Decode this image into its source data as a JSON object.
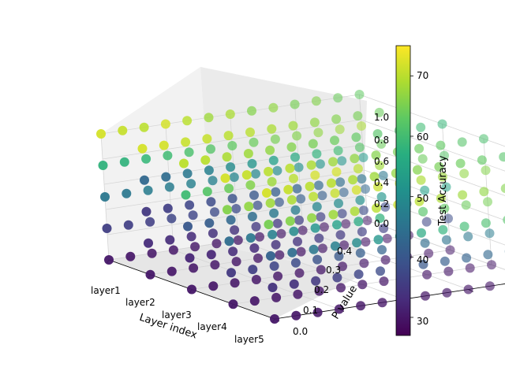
{
  "chart_data": {
    "type": "scatter",
    "title": "",
    "xlabel": "Layer index",
    "ylabel": "P value",
    "zlabel": "",
    "x_categories": [
      "layer1",
      "layer2",
      "layer3",
      "layer4",
      "layer5"
    ],
    "y_ticks": [
      "0.0",
      "0.1",
      "0.2",
      "0.3",
      "0.4"
    ],
    "z_ticks": [
      "0.0",
      "0.2",
      "0.4",
      "0.6",
      "0.8",
      "1.0"
    ],
    "xlim": [
      1,
      5
    ],
    "ylim": [
      0.0,
      0.4
    ],
    "zlim": [
      0.0,
      1.0
    ],
    "grid": true,
    "colorbar": {
      "label": "Test Accuracy",
      "ticks": [
        "30",
        "40",
        "50",
        "60",
        "70"
      ],
      "range": [
        27,
        75
      ],
      "colormap": "viridis"
    },
    "z_levels": [
      0.0,
      0.25,
      0.5,
      0.75,
      1.0
    ],
    "p_values": [
      0.0,
      0.0333,
      0.0667,
      0.1,
      0.1333,
      0.1667,
      0.2,
      0.2333,
      0.2667,
      0.3,
      0.3333,
      0.3667,
      0.4
    ],
    "accuracy_by_layer_and_z": {
      "layer1": [
        [
          30,
          30,
          30,
          30,
          30,
          30,
          30,
          30,
          30,
          30,
          30,
          30,
          30
        ],
        [
          36,
          36,
          36,
          37,
          37,
          38,
          38,
          39,
          40,
          41,
          41,
          42,
          43
        ],
        [
          46,
          46,
          47,
          47,
          48,
          48,
          49,
          49,
          50,
          51,
          52,
          52,
          53
        ],
        [
          58,
          58,
          59,
          60,
          61,
          62,
          63,
          64,
          65,
          66,
          67,
          68,
          69
        ],
        [
          72,
          71,
          70,
          72,
          70,
          68,
          69,
          66,
          67,
          65,
          66,
          64,
          63
        ]
      ],
      "layer2": [
        [
          30,
          30,
          30,
          30,
          30,
          30,
          30,
          30,
          30,
          30,
          30,
          30,
          30
        ],
        [
          33,
          33,
          33,
          34,
          34,
          35,
          35,
          36,
          36,
          37,
          38,
          38,
          39
        ],
        [
          35,
          36,
          37,
          38,
          39,
          40,
          41,
          42,
          43,
          44,
          45,
          46,
          47
        ],
        [
          43,
          44,
          46,
          48,
          50,
          52,
          54,
          56,
          58,
          60,
          62,
          64,
          66
        ],
        [
          72,
          72,
          71,
          71,
          70,
          70,
          69,
          68,
          67,
          66,
          65,
          64,
          63
        ]
      ],
      "layer3": [
        [
          30,
          30,
          30,
          30,
          30,
          30,
          30,
          30,
          30,
          30,
          30,
          30,
          30
        ],
        [
          32,
          32,
          33,
          33,
          34,
          34,
          35,
          35,
          36,
          36,
          37,
          37,
          38
        ],
        [
          40,
          41,
          43,
          44,
          46,
          47,
          49,
          50,
          51,
          52,
          53,
          54,
          55
        ],
        [
          60,
          62,
          64,
          66,
          68,
          70,
          72,
          72,
          70,
          68,
          66,
          64,
          62
        ],
        [
          70,
          70,
          69,
          68,
          67,
          66,
          65,
          64,
          63,
          62,
          61,
          60,
          59
        ]
      ],
      "layer4": [
        [
          30,
          30,
          30,
          30,
          30,
          30,
          30,
          30,
          30,
          30,
          30,
          30,
          30
        ],
        [
          35,
          36,
          37,
          38,
          39,
          40,
          41,
          42,
          43,
          44,
          45,
          46,
          47
        ],
        [
          44,
          46,
          48,
          50,
          52,
          54,
          56,
          58,
          60,
          62,
          63,
          64,
          65
        ],
        [
          66,
          67,
          68,
          69,
          70,
          71,
          72,
          71,
          70,
          69,
          68,
          67,
          66
        ],
        [
          72,
          71,
          70,
          70,
          69,
          68,
          67,
          66,
          65,
          64,
          63,
          62,
          61
        ]
      ],
      "layer5": [
        [
          30,
          30,
          30,
          30,
          30,
          30,
          30,
          30,
          30,
          30,
          30,
          30,
          30
        ],
        [
          34,
          34,
          35,
          36,
          37,
          38,
          39,
          40,
          41,
          42,
          43,
          44,
          45
        ],
        [
          42,
          44,
          46,
          48,
          50,
          52,
          54,
          56,
          58,
          60,
          61,
          62,
          63
        ],
        [
          65,
          66,
          67,
          68,
          69,
          70,
          71,
          70,
          69,
          68,
          67,
          66,
          65
        ],
        [
          72,
          71,
          70,
          70,
          69,
          68,
          67,
          66,
          65,
          64,
          63,
          62,
          61
        ]
      ]
    }
  }
}
